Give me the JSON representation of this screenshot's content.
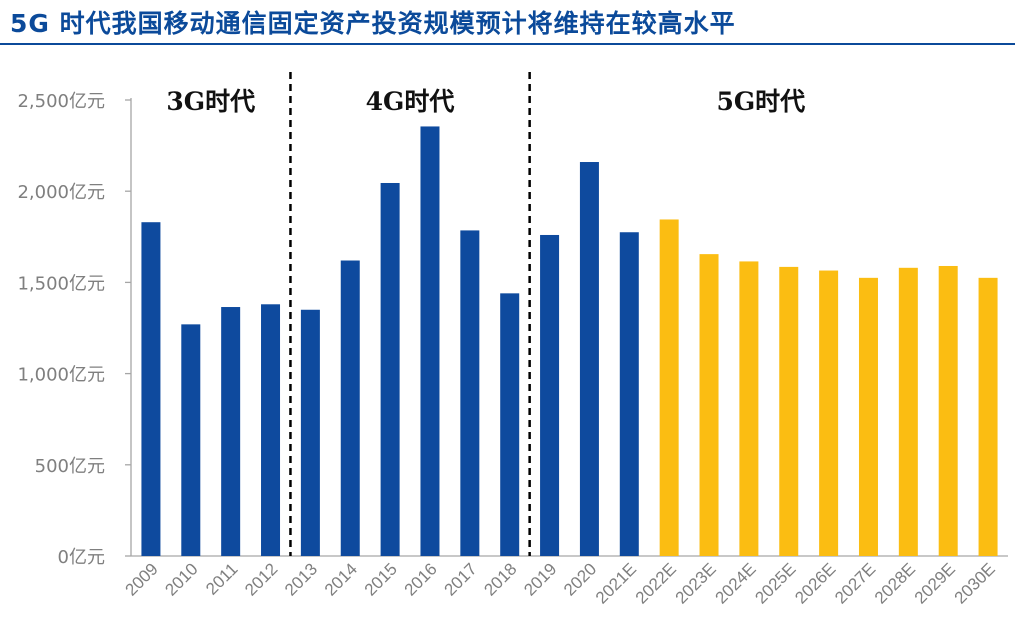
{
  "title": "5G 时代我国移动通信固定资产投资规模预计将维持在较高水平",
  "colors": {
    "actual": "#0e4a9e",
    "forecast": "#fbbd12",
    "title": "#0b4a9a",
    "axis": "#7f7f7f"
  },
  "chart_data": {
    "type": "bar",
    "title": "5G 时代我国移动通信固定资产投资规模预计将维持在较高水平",
    "xlabel": "",
    "ylabel": "",
    "ylim": [
      0,
      2500
    ],
    "yticks": [
      0,
      500,
      1000,
      1500,
      2000,
      2500
    ],
    "ytick_labels": [
      "0亿元",
      "500亿元",
      "1,000亿元",
      "1,500亿元",
      "2,000亿元",
      "2,500亿元"
    ],
    "categories": [
      "2009",
      "2010",
      "2011",
      "2012",
      "2013",
      "2014",
      "2015",
      "2016",
      "2017",
      "2018",
      "2019",
      "2020",
      "2021E",
      "2022E",
      "2023E",
      "2024E",
      "2025E",
      "2026E",
      "2027E",
      "2028E",
      "2029E",
      "2030E"
    ],
    "values": [
      1830,
      1270,
      1365,
      1380,
      1350,
      1620,
      2045,
      2355,
      1785,
      1440,
      1760,
      2160,
      1775,
      1845,
      1655,
      1615,
      1585,
      1565,
      1525,
      1580,
      1590,
      1525
    ],
    "bar_type": [
      "actual",
      "actual",
      "actual",
      "actual",
      "actual",
      "actual",
      "actual",
      "actual",
      "actual",
      "actual",
      "actual",
      "actual",
      "actual",
      "forecast",
      "forecast",
      "forecast",
      "forecast",
      "forecast",
      "forecast",
      "forecast",
      "forecast",
      "forecast"
    ],
    "grid": false,
    "eras": [
      {
        "label": "3G时代",
        "from": 0,
        "to": 3
      },
      {
        "label": "4G时代",
        "from": 4,
        "to": 9
      },
      {
        "label": "5G时代",
        "from": 10,
        "to": 21
      }
    ],
    "dividers_after": [
      3,
      9
    ]
  }
}
